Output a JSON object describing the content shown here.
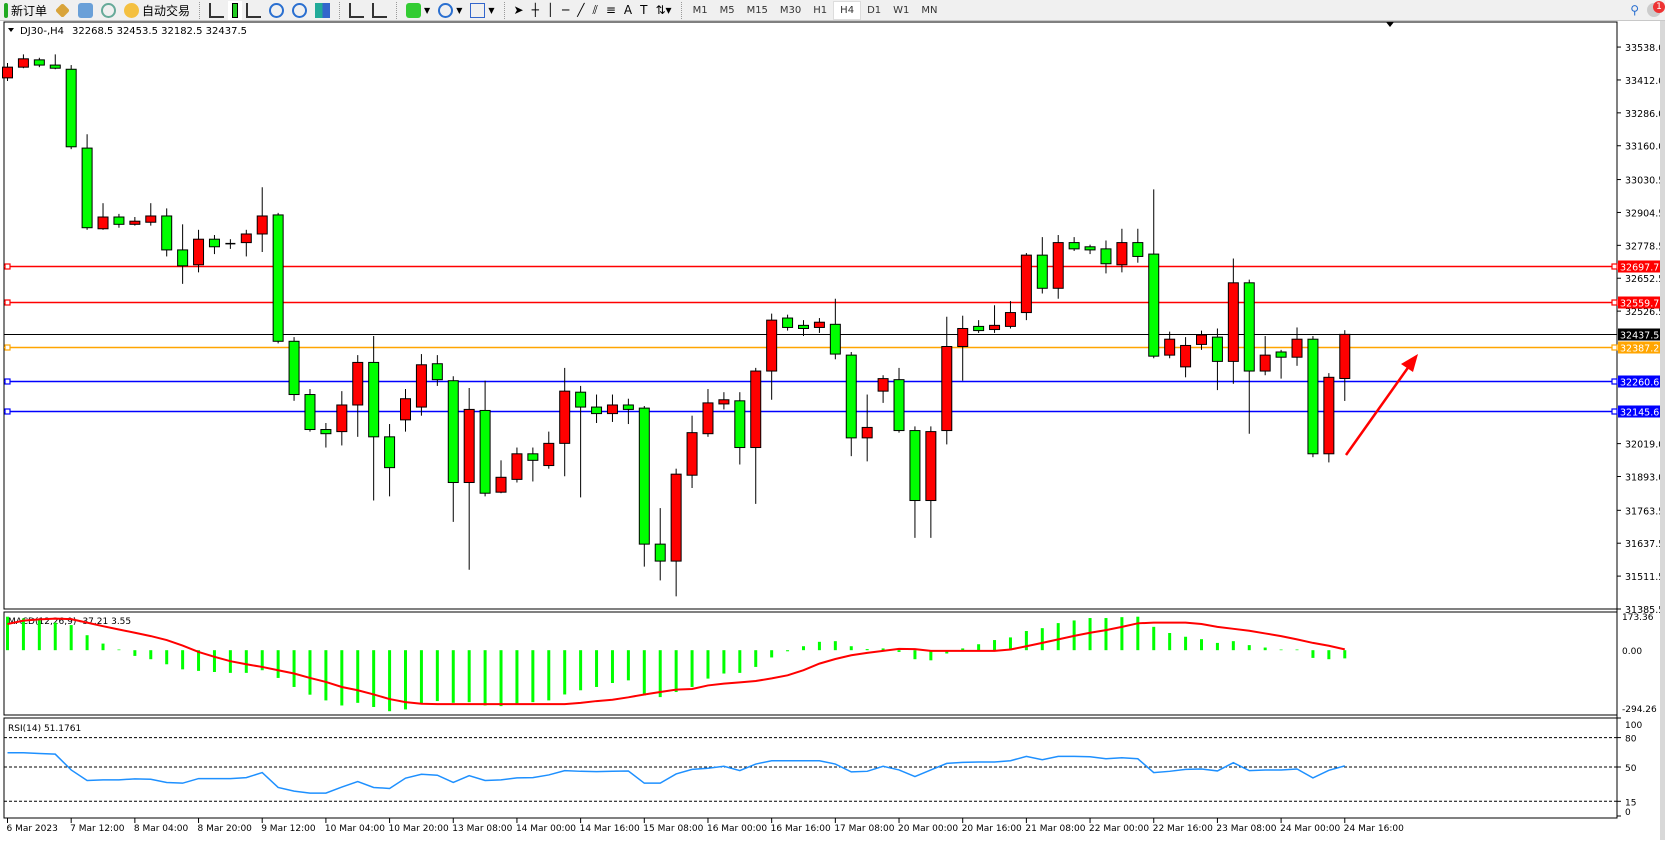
{
  "toolbar": {
    "new_order": "新订单",
    "auto_trading": "自动交易",
    "timeframes": [
      "M1",
      "M5",
      "M15",
      "M30",
      "H1",
      "H4",
      "D1",
      "W1",
      "MN"
    ],
    "active_timeframe": "H4",
    "notification_count": "1"
  },
  "chart": {
    "symbol_label": "DJ30-,H4",
    "ohlc_label": "32268.5 32453.5 32182.5 32437.5",
    "price_ticks": [
      "33538.0",
      "33412.0",
      "33286.0",
      "33160.0",
      "33030.5",
      "32904.5",
      "32778.5",
      "32652.5",
      "32526.5",
      "32019.0",
      "31893.0",
      "31763.5",
      "31637.5",
      "31511.5",
      "31385.5"
    ],
    "hlines": [
      {
        "value": "32697.7",
        "color": "#ff0000"
      },
      {
        "value": "32559.7",
        "color": "#ff0000"
      },
      {
        "value": "32437.5",
        "color": "#000000"
      },
      {
        "value": "32387.2",
        "color": "#ffa500"
      },
      {
        "value": "32260.6",
        "color": "#0000ff"
      },
      {
        "value": "32145.6",
        "color": "#0000ff"
      }
    ],
    "time_labels": [
      "6 Mar 2023",
      "7 Mar 12:00",
      "8 Mar 04:00",
      "8 Mar 20:00",
      "9 Mar 12:00",
      "10 Mar 04:00",
      "10 Mar 20:00",
      "13 Mar 08:00",
      "14 Mar 00:00",
      "14 Mar 16:00",
      "15 Mar 08:00",
      "16 Mar 00:00",
      "16 Mar 16:00",
      "17 Mar 08:00",
      "20 Mar 00:00",
      "20 Mar 16:00",
      "21 Mar 08:00",
      "22 Mar 00:00",
      "22 Mar 16:00",
      "23 Mar 08:00",
      "24 Mar 00:00",
      "24 Mar 16:00"
    ],
    "macd_label": "MACD(12,26,9) -37.21 3.55",
    "macd_ticks": [
      "173.36",
      "0.00",
      "-294.26"
    ],
    "rsi_label": "RSI(14) 51.1761",
    "rsi_ticks": [
      "100",
      "80",
      "50",
      "15",
      "0"
    ],
    "colors": {
      "up_candle": "#ff0000",
      "down_candle": "#00ff00",
      "macd_hist": "#00ff00",
      "macd_signal": "#ff0000",
      "rsi_line": "#1e90ff",
      "arrow": "#ff0000"
    }
  },
  "chart_data": {
    "type": "candlestick",
    "ylim": [
      31385.5,
      33634
    ],
    "ohlc": [
      [
        33420,
        33477,
        33408,
        33461
      ],
      [
        33461,
        33510,
        33457,
        33493
      ],
      [
        33489,
        33497,
        33461,
        33469
      ],
      [
        33469,
        33510,
        33453,
        33457
      ],
      [
        33453,
        33469,
        33147,
        33156
      ],
      [
        33151,
        33204,
        32838,
        32846
      ],
      [
        32842,
        32940,
        32838,
        32887
      ],
      [
        32887,
        32899,
        32846,
        32859
      ],
      [
        32859,
        32887,
        32854,
        32871
      ],
      [
        32867,
        32940,
        32854,
        32891
      ],
      [
        32891,
        32920,
        32736,
        32761
      ],
      [
        32761,
        32859,
        32631,
        32700
      ],
      [
        32704,
        32838,
        32675,
        32802
      ],
      [
        32802,
        32818,
        32745,
        32773
      ],
      [
        32785,
        32802,
        32765,
        32781
      ],
      [
        32789,
        32838,
        32736,
        32822
      ],
      [
        32822,
        33001,
        32753,
        32891
      ],
      [
        32895,
        32903,
        32403,
        32411
      ],
      [
        32411,
        32427,
        32183,
        32207
      ],
      [
        32207,
        32228,
        32065,
        32073
      ],
      [
        32073,
        32098,
        32004,
        32057
      ],
      [
        32065,
        32220,
        32012,
        32167
      ],
      [
        32167,
        32358,
        32045,
        32330
      ],
      [
        32330,
        32431,
        31801,
        32045
      ],
      [
        32045,
        32094,
        31817,
        31927
      ],
      [
        32110,
        32228,
        32065,
        32191
      ],
      [
        32159,
        32362,
        32126,
        32321
      ],
      [
        32325,
        32358,
        32240,
        32264
      ],
      [
        32260,
        32277,
        31719,
        31870
      ],
      [
        31870,
        32232,
        31536,
        32150
      ],
      [
        32146,
        32260,
        31817,
        31829
      ],
      [
        31833,
        31955,
        31829,
        31890
      ],
      [
        31882,
        32004,
        31870,
        31980
      ],
      [
        31980,
        32004,
        31874,
        31955
      ],
      [
        31935,
        32065,
        31923,
        32020
      ],
      [
        32020,
        32309,
        31894,
        32220
      ],
      [
        32216,
        32240,
        31813,
        32159
      ],
      [
        32159,
        32207,
        32098,
        32134
      ],
      [
        32134,
        32207,
        32102,
        32167
      ],
      [
        32167,
        32191,
        32094,
        32150
      ],
      [
        32155,
        32163,
        31548,
        31634
      ],
      [
        31634,
        31772,
        31495,
        31569
      ],
      [
        31569,
        31923,
        31434,
        31902
      ],
      [
        31898,
        32126,
        31849,
        32061
      ],
      [
        32057,
        32228,
        32045,
        32175
      ],
      [
        32171,
        32216,
        32150,
        32187
      ],
      [
        32183,
        32216,
        31939,
        32004
      ],
      [
        32004,
        32309,
        31788,
        32297
      ],
      [
        32297,
        32517,
        32187,
        32492
      ],
      [
        32500,
        32513,
        32452,
        32464
      ],
      [
        32472,
        32492,
        32431,
        32460
      ],
      [
        32464,
        32500,
        32443,
        32484
      ],
      [
        32476,
        32574,
        32342,
        32362
      ],
      [
        32358,
        32370,
        31971,
        32041
      ],
      [
        32041,
        32207,
        31951,
        32081
      ],
      [
        32220,
        32281,
        32175,
        32268
      ],
      [
        32264,
        32309,
        32061,
        32069
      ],
      [
        32069,
        32085,
        31658,
        31801
      ],
      [
        31801,
        32085,
        31658,
        32065
      ],
      [
        32069,
        32505,
        32016,
        32391
      ],
      [
        32391,
        32509,
        32260,
        32460
      ],
      [
        32468,
        32492,
        32443,
        32452
      ],
      [
        32456,
        32549,
        32443,
        32472
      ],
      [
        32468,
        32565,
        32460,
        32521
      ],
      [
        32521,
        32749,
        32492,
        32741
      ],
      [
        32741,
        32810,
        32594,
        32614
      ],
      [
        32614,
        32818,
        32574,
        32789
      ],
      [
        32789,
        32810,
        32757,
        32765
      ],
      [
        32773,
        32781,
        32745,
        32761
      ],
      [
        32765,
        32797,
        32671,
        32708
      ],
      [
        32704,
        32842,
        32675,
        32789
      ],
      [
        32789,
        32842,
        32712,
        32736
      ],
      [
        32745,
        32993,
        32346,
        32354
      ],
      [
        32358,
        32448,
        32346,
        32419
      ],
      [
        32313,
        32427,
        32273,
        32395
      ],
      [
        32399,
        32452,
        32378,
        32435
      ],
      [
        32427,
        32460,
        32224,
        32334
      ],
      [
        32334,
        32728,
        32248,
        32635
      ],
      [
        32635,
        32647,
        32057,
        32297
      ],
      [
        32297,
        32431,
        32281,
        32358
      ],
      [
        32370,
        32378,
        32268,
        32350
      ],
      [
        32350,
        32464,
        32317,
        32419
      ],
      [
        32419,
        32431,
        31967,
        31980
      ],
      [
        31980,
        32289,
        31947,
        32273
      ],
      [
        32268.5,
        32453.5,
        32182.5,
        32437.5
      ]
    ],
    "macd": {
      "ylim": [
        -294.26,
        173.36
      ],
      "histogram": [
        152,
        144,
        137,
        125,
        114,
        68,
        30,
        3,
        -26,
        -41,
        -64,
        -87,
        -94,
        -99,
        -103,
        -103,
        -91,
        -126,
        -167,
        -202,
        -228,
        -251,
        -239,
        -258,
        -277,
        -269,
        -246,
        -231,
        -239,
        -236,
        -251,
        -254,
        -243,
        -236,
        -228,
        -201,
        -182,
        -167,
        -149,
        -137,
        -205,
        -213,
        -190,
        -167,
        -129,
        -106,
        -103,
        -76,
        -33,
        -5,
        18,
        38,
        41,
        18,
        5,
        8,
        -8,
        -41,
        -46,
        -15,
        8,
        27,
        46,
        58,
        87,
        100,
        123,
        135,
        146,
        146,
        150,
        152,
        106,
        78,
        61,
        50,
        33,
        41,
        23,
        12,
        3,
        3,
        -35,
        -41,
        -37.21
      ],
      "signal": [
        119,
        134,
        140,
        143,
        141,
        125,
        109,
        94,
        79,
        64,
        46,
        21,
        -8,
        -30,
        -50,
        -64,
        -76,
        -91,
        -106,
        -126,
        -144,
        -167,
        -182,
        -201,
        -222,
        -236,
        -243,
        -245,
        -245,
        -245,
        -245,
        -245,
        -245,
        -245,
        -245,
        -245,
        -239,
        -231,
        -225,
        -214,
        -201,
        -190,
        -179,
        -176,
        -160,
        -152,
        -146,
        -140,
        -128,
        -114,
        -91,
        -61,
        -40,
        -23,
        -12,
        -3,
        6,
        5,
        -3,
        -3,
        -3,
        -3,
        -3,
        3,
        18,
        33,
        49,
        65,
        79,
        91,
        106,
        122,
        125,
        125,
        125,
        119,
        106,
        97,
        88,
        76,
        64,
        49,
        33,
        20,
        3.55
      ]
    },
    "rsi": {
      "ylim": [
        0,
        100
      ],
      "levels": [
        80,
        50,
        15
      ],
      "values": [
        64.5,
        64.5,
        63.8,
        63.1,
        47.0,
        36.2,
        36.9,
        36.9,
        37.9,
        37.5,
        34.2,
        33.5,
        38.2,
        38.2,
        38.2,
        39.2,
        44.3,
        29.1,
        25.4,
        23.4,
        23.4,
        29.5,
        35.2,
        29.1,
        28.1,
        38.6,
        42.6,
        41.6,
        34.2,
        41.2,
        36.2,
        36.9,
        38.9,
        39.2,
        41.9,
        46.3,
        45.6,
        45.3,
        45.6,
        45.9,
        33.5,
        33.5,
        42.9,
        47.6,
        48.7,
        50.7,
        46.3,
        53.0,
        56.4,
        56.4,
        56.4,
        56.4,
        53.0,
        45.0,
        45.6,
        50.7,
        47.0,
        40.2,
        47.0,
        53.7,
        54.7,
        55.1,
        55.1,
        56.4,
        60.8,
        57.4,
        60.8,
        60.8,
        60.4,
        58.4,
        59.4,
        58.4,
        44.3,
        45.6,
        47.6,
        48.0,
        46.0,
        54.4,
        46.3,
        47.0,
        47.0,
        48.0,
        38.9,
        46.6,
        51.18
      ]
    }
  }
}
